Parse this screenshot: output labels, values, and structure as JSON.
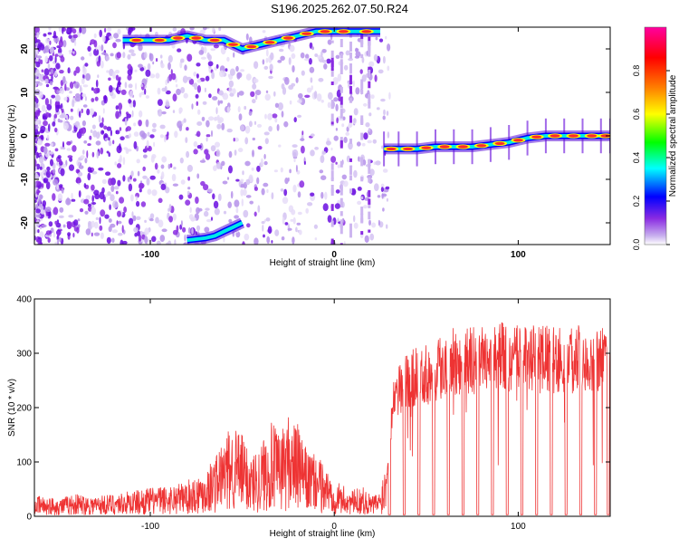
{
  "title": "S196.2025.262.07.50.R24",
  "chart_data": [
    {
      "type": "heatmap",
      "xlabel": "Height of straight line (km)",
      "ylabel": "Frequency (Hz)",
      "xlim": [
        -163,
        150
      ],
      "ylim": [
        -25,
        25
      ],
      "xticks": [
        -100,
        0,
        100
      ],
      "xtick_labels": [
        "-100",
        "0",
        "100"
      ],
      "yticks": [
        -20,
        -10,
        0,
        10,
        20
      ],
      "ytick_labels": [
        "-20",
        "-10",
        "0",
        "10",
        "20"
      ],
      "colorbar": {
        "label": "Normalized spectral amplitude",
        "range": [
          0,
          1
        ],
        "ticks": [
          0.0,
          0.2,
          0.4,
          0.6,
          0.8
        ],
        "tick_labels": [
          "0.0",
          "0.2",
          "0.4",
          "0.6",
          "0.8"
        ],
        "colors": [
          "#ffffff",
          "#c8b0ee",
          "#8a2be2",
          "#0000ff",
          "#00ffff",
          "#00ff00",
          "#ffff00",
          "#ff8000",
          "#ff0000",
          "#ff00a0"
        ]
      },
      "carrier_trace": {
        "x": [
          27,
          35,
          45,
          55,
          65,
          75,
          85,
          95,
          105,
          115,
          125,
          135,
          145,
          150
        ],
        "y": [
          -3,
          -3,
          -3,
          -2.5,
          -2.5,
          -2.5,
          -2,
          -1.5,
          -0.5,
          0,
          0,
          0,
          0,
          0
        ]
      },
      "upper_aliased_trace": {
        "x": [
          -115,
          -100,
          -90,
          -80,
          -70,
          -60,
          -50,
          -40,
          -30,
          -20,
          -10,
          0,
          10,
          25
        ],
        "y": [
          22,
          22,
          22,
          23,
          22,
          22,
          20,
          21,
          22,
          23,
          24,
          24,
          24,
          24
        ]
      },
      "lower_aliased_trace": {
        "x": [
          -80,
          -70,
          -65,
          -60,
          -55,
          -50
        ],
        "y": [
          -24,
          -23.5,
          -23,
          -22,
          -21,
          -20
        ]
      }
    },
    {
      "type": "line",
      "xlabel": "Height of straight line (km)",
      "ylabel": "SNR (10 * v/v)",
      "xlim": [
        -163,
        150
      ],
      "ylim": [
        0,
        400
      ],
      "xticks": [
        -100,
        0,
        100
      ],
      "xtick_labels": [
        "-100",
        "0",
        "100"
      ],
      "yticks": [
        0,
        100,
        200,
        300,
        400
      ],
      "ytick_labels": [
        "0",
        "100",
        "200",
        "300",
        "400"
      ],
      "series": [
        {
          "color": "#ee3333",
          "x": [
            -163,
            -150,
            -140,
            -130,
            -120,
            -110,
            -100,
            -90,
            -80,
            -70,
            -65,
            -60,
            -55,
            -50,
            -45,
            -40,
            -35,
            -30,
            -25,
            -20,
            -15,
            -10,
            -5,
            0,
            5,
            10,
            15,
            20,
            25,
            28,
            30,
            33,
            36,
            40,
            45,
            50,
            55,
            60,
            65,
            70,
            75,
            80,
            85,
            90,
            95,
            100,
            105,
            110,
            115,
            120,
            125,
            130,
            135,
            140,
            145,
            150
          ],
          "y": [
            20,
            18,
            22,
            20,
            22,
            25,
            28,
            30,
            35,
            45,
            60,
            75,
            90,
            80,
            60,
            70,
            95,
            80,
            100,
            90,
            65,
            60,
            50,
            35,
            30,
            25,
            30,
            20,
            25,
            60,
            150,
            220,
            240,
            250,
            255,
            260,
            270,
            280,
            285,
            285,
            285,
            290,
            290,
            295,
            290,
            290,
            285,
            290,
            290,
            285,
            290,
            290,
            295,
            290,
            290,
            285
          ]
        }
      ],
      "dropouts_x": [
        30,
        38,
        46,
        54,
        62,
        70,
        78,
        86,
        94,
        102,
        110,
        118,
        126,
        134,
        142,
        149
      ]
    }
  ]
}
